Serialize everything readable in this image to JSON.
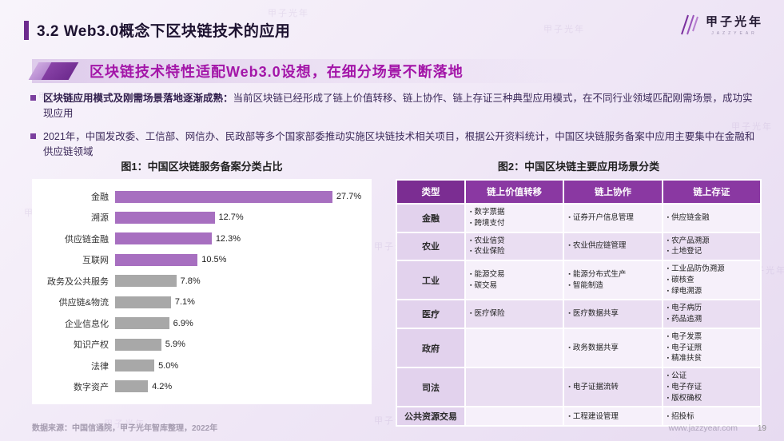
{
  "page": {
    "title": "3.2 Web3.0概念下区块链技术的应用",
    "subtitle": "区块链技术特性适配Web3.0设想，在细分场景不断落地",
    "logo_text": "甲子光年",
    "logo_subtext": "JAZZYEAR",
    "source": "数据来源：中国信通院，甲子光年智库整理，2022年",
    "website": "www.jazzyear.com",
    "page_number": "19"
  },
  "colors": {
    "accent": "#6d2a8e",
    "subtitle": "#a315a8",
    "table_header": "#8a38a2"
  },
  "bullets": [
    {
      "bold": "区块链应用模式及刚需场景落地逐渐成熟：",
      "text": "当前区块链已经形成了链上价值转移、链上协作、链上存证三种典型应用模式，在不同行业领域匹配刚需场景，成功实现应用"
    },
    {
      "bold": "",
      "text": "2021年，中国发改委、工信部、网信办、民政部等多个国家部委推动实施区块链技术相关项目，根据公开资料统计，中国区块链服务备案中应用主要集中在金融和供应链领域"
    }
  ],
  "chart_data": {
    "type": "bar",
    "orientation": "horizontal",
    "title": "图1：中国区块链服务备案分类占比",
    "categories": [
      "金融",
      "溯源",
      "供应链金融",
      "互联网",
      "政务及公共服务",
      "供应链&物流",
      "企业信息化",
      "知识产权",
      "法律",
      "数字资产"
    ],
    "values": [
      27.7,
      12.7,
      12.3,
      10.5,
      7.8,
      7.1,
      6.9,
      5.9,
      5.0,
      4.2
    ],
    "labels": [
      "27.7%",
      "12.7%",
      "12.3%",
      "10.5%",
      "7.8%",
      "7.1%",
      "6.9%",
      "5.9%",
      "5.0%",
      "4.2%"
    ],
    "highlight_count": 4,
    "highlight_color": "#a76fc0",
    "default_color": "#a8a8a8",
    "grid": false,
    "legend": false
  },
  "table": {
    "title": "图2：中国区块链主要应用场景分类",
    "headers": [
      "类型",
      "链上价值转移",
      "链上协作",
      "链上存证"
    ],
    "rows": [
      {
        "type": "金融",
        "cells": [
          [
            "数字票据",
            "跨境支付"
          ],
          [
            "证券开户信息管理"
          ],
          [
            "供应链金融"
          ]
        ]
      },
      {
        "type": "农业",
        "cells": [
          [
            "农业信贷",
            "农业保险"
          ],
          [
            "农业供应链管理"
          ],
          [
            "农产品溯源",
            "土地登记"
          ]
        ]
      },
      {
        "type": "工业",
        "cells": [
          [
            "能源交易",
            "碳交易"
          ],
          [
            "能源分布式生产",
            "智能制造"
          ],
          [
            "工业品防伪溯源",
            "碳核查",
            "绿电溯源"
          ]
        ]
      },
      {
        "type": "医疗",
        "cells": [
          [
            "医疗保险"
          ],
          [
            "医疗数据共享"
          ],
          [
            "电子病历",
            "药品追溯"
          ]
        ]
      },
      {
        "type": "政府",
        "cells": [
          [],
          [
            "政务数据共享"
          ],
          [
            "电子发票",
            "电子证照",
            "精准扶贫"
          ]
        ]
      },
      {
        "type": "司法",
        "cells": [
          [],
          [
            "电子证据流转"
          ],
          [
            "公证",
            "电子存证",
            "版权确权"
          ]
        ]
      },
      {
        "type": "公共资源交易",
        "cells": [
          [],
          [
            "工程建设管理"
          ],
          [
            "招投标"
          ]
        ]
      }
    ]
  }
}
